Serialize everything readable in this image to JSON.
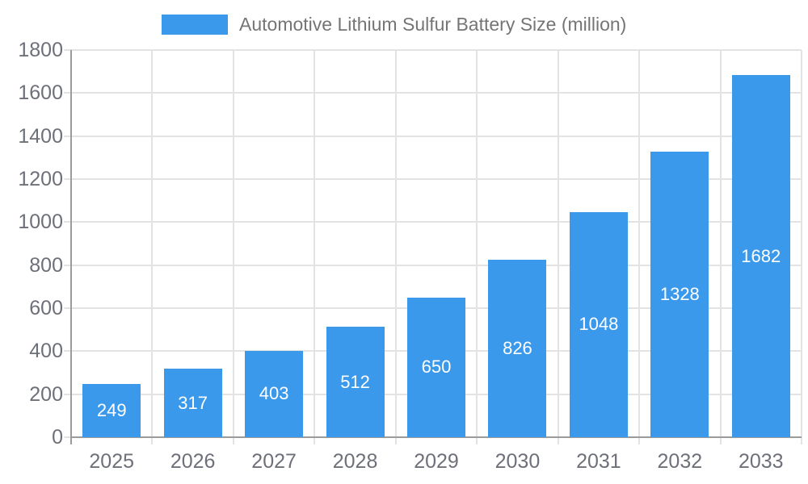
{
  "legend": {
    "label": "Automotive Lithium Sulfur Battery Size (million)"
  },
  "colors": {
    "bar": "#3b99ec",
    "axis_line": "#9b9b9b",
    "gridline": "#e3e3e3",
    "tick_label": "#6e7079",
    "legend_text": "#757575",
    "value_label": "#ffffff",
    "background": "#ffffff"
  },
  "chart_data": {
    "type": "bar",
    "title": "Automotive Lithium Sulfur Battery Size (million)",
    "categories": [
      "2025",
      "2026",
      "2027",
      "2028",
      "2029",
      "2030",
      "2031",
      "2032",
      "2033"
    ],
    "values": [
      249,
      317,
      403,
      512,
      650,
      826,
      1048,
      1328,
      1682
    ],
    "xlabel": "",
    "ylabel": "",
    "ylim": [
      0,
      1800
    ],
    "ytick_step": 200,
    "grid": true,
    "value_labels": "inside-center",
    "legend_position": "top"
  }
}
